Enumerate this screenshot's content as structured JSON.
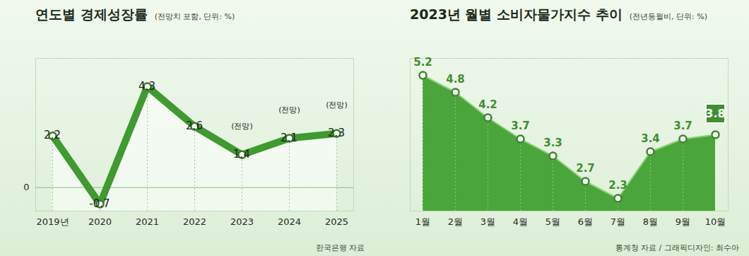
{
  "chart_data": [
    {
      "type": "line",
      "title": "연도별 경제성장률",
      "subtitle": "(전망치 포함, 단위: %)",
      "source": "한국은행 자료",
      "categories": [
        "2019년",
        "2020",
        "2021",
        "2022",
        "2023",
        "2024",
        "2025"
      ],
      "values": [
        2.2,
        -0.7,
        4.3,
        2.6,
        1.4,
        2.1,
        2.3
      ],
      "annotations": [
        {
          "category": "2023",
          "text": "(전망)"
        },
        {
          "category": "2024",
          "text": "(전망)"
        },
        {
          "category": "2025",
          "text": "(전망)"
        }
      ],
      "color": "#3f9a2f",
      "ylim": [
        -1,
        5.5
      ],
      "yticks": [
        0
      ],
      "grid": true,
      "data_labels": true,
      "marker": "circle"
    },
    {
      "type": "area",
      "title": "2023년 월별 소비자물가지수 추이",
      "subtitle": "(전년동월비, 단위: %)",
      "source": "통계청 자료 / 그래픽디자인: 최수아",
      "categories": [
        "1월",
        "2월",
        "3월",
        "4월",
        "5월",
        "6월",
        "7월",
        "8월",
        "9월",
        "10월"
      ],
      "values": [
        5.2,
        4.8,
        4.2,
        3.7,
        3.3,
        2.7,
        2.3,
        3.4,
        3.7,
        3.8
      ],
      "color": "#4aa63a",
      "ylim": [
        2,
        5.6
      ],
      "yticks": [],
      "grid": false,
      "tick_labels": "x",
      "data_labels": true,
      "marker": "circle"
    }
  ]
}
